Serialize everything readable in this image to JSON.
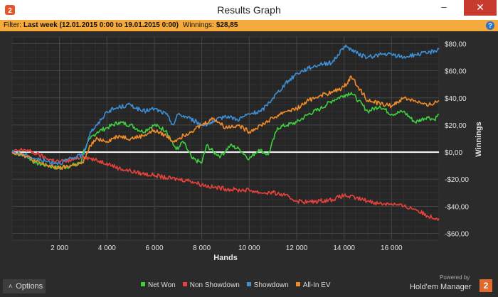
{
  "window": {
    "title": "Results Graph",
    "minimize_glyph": "–",
    "maximize_glyph": "□",
    "close_glyph": "✕",
    "app_icon": "hm2-logo-icon"
  },
  "filter": {
    "label": "Filter:",
    "value": "Last week (12.01.2015 0:00 to 19.01.2015 0:00)",
    "winnings_label": "Winnings:",
    "winnings_value": "$28,85",
    "help_icon": "help-icon",
    "help_glyph": "?"
  },
  "chart_data": {
    "type": "line",
    "xlabel": "Hands",
    "ylabel": "Winnings",
    "xlim": [
      0,
      18000
    ],
    "ylim": [
      -65,
      85
    ],
    "x_ticks": [
      2000,
      4000,
      6000,
      8000,
      10000,
      12000,
      14000,
      16000
    ],
    "x_tick_labels": [
      "2 000",
      "4 000",
      "6 000",
      "8 000",
      "10 000",
      "12 000",
      "14 000",
      "16 000"
    ],
    "y_ticks": [
      80,
      60,
      40,
      20,
      0,
      -20,
      -40,
      -60
    ],
    "y_tick_labels": [
      "$80,00",
      "$60,00",
      "$40,00",
      "$20,00",
      "$0,00",
      "-$20,00",
      "-$40,00",
      "-$60,00"
    ],
    "grid": true,
    "series": [
      {
        "name": "Net Won",
        "color": "#3ecf3e",
        "x": [
          0,
          600,
          1000,
          1500,
          2000,
          2500,
          2900,
          3000,
          3300,
          3600,
          4000,
          4500,
          5000,
          5500,
          6000,
          6500,
          6800,
          7000,
          7200,
          7600,
          8000,
          8200,
          8500,
          8800,
          9200,
          9600,
          10000,
          10400,
          10800,
          11200,
          11600,
          12000,
          12500,
          13000,
          13500,
          14000,
          14300,
          14600,
          15000,
          15500,
          16000,
          16500,
          17000,
          17500,
          17800,
          18000
        ],
        "values": [
          0,
          -3,
          -8,
          -10,
          -12,
          -10,
          -8,
          0,
          10,
          15,
          18,
          22,
          20,
          15,
          20,
          16,
          5,
          2,
          8,
          -5,
          -8,
          5,
          0,
          -3,
          5,
          2,
          -5,
          2,
          -2,
          18,
          20,
          22,
          28,
          32,
          38,
          42,
          44,
          38,
          30,
          34,
          28,
          30,
          22,
          26,
          24,
          28
        ]
      },
      {
        "name": "Non Showdown",
        "color": "#e8413b",
        "x": [
          0,
          500,
          1000,
          1500,
          2000,
          2500,
          3000,
          3500,
          4000,
          4500,
          5000,
          5500,
          6000,
          6500,
          7000,
          7500,
          8000,
          8500,
          9000,
          9500,
          10000,
          10500,
          11000,
          11500,
          12000,
          12500,
          13000,
          13500,
          14000,
          14500,
          15000,
          15500,
          16000,
          16500,
          17000,
          17500,
          18000
        ],
        "values": [
          0,
          2,
          -1,
          -5,
          -7,
          -6,
          -3,
          -6,
          -8,
          -12,
          -14,
          -16,
          -17,
          -19,
          -20,
          -21,
          -24,
          -26,
          -27,
          -28,
          -28,
          -30,
          -30,
          -32,
          -36,
          -37,
          -36,
          -35,
          -32,
          -34,
          -36,
          -38,
          -38,
          -40,
          -42,
          -47,
          -49
        ]
      },
      {
        "name": "Showdown",
        "color": "#3d8fd6",
        "x": [
          0,
          500,
          1000,
          1500,
          2000,
          2500,
          3000,
          3300,
          3600,
          3800,
          4000,
          4500,
          5000,
          5500,
          6000,
          6500,
          6800,
          7000,
          7500,
          8000,
          8500,
          9000,
          9500,
          10000,
          10500,
          11000,
          11500,
          12000,
          12500,
          13000,
          13500,
          14000,
          14300,
          14600,
          15000,
          15500,
          16000,
          16500,
          17000,
          17500,
          18000
        ],
        "values": [
          0,
          -2,
          -5,
          -7,
          -8,
          -5,
          -2,
          15,
          20,
          25,
          30,
          33,
          35,
          30,
          32,
          28,
          20,
          28,
          25,
          20,
          22,
          27,
          24,
          28,
          30,
          40,
          50,
          58,
          62,
          65,
          66,
          78,
          76,
          72,
          70,
          72,
          72,
          70,
          72,
          73,
          76
        ]
      },
      {
        "name": "All-In EV",
        "color": "#f28c28",
        "x": [
          0,
          500,
          1000,
          1500,
          2000,
          2500,
          3000,
          3300,
          3600,
          4000,
          4500,
          5000,
          5500,
          6000,
          6500,
          6800,
          7000,
          7500,
          8000,
          8500,
          9000,
          9500,
          10000,
          10500,
          11000,
          11500,
          12000,
          12500,
          13000,
          13500,
          14000,
          14300,
          14600,
          15000,
          15500,
          16000,
          16500,
          17000,
          17500,
          18000
        ],
        "values": [
          0,
          -2,
          -7,
          -10,
          -12,
          -10,
          -8,
          5,
          10,
          8,
          12,
          10,
          12,
          16,
          12,
          8,
          10,
          15,
          20,
          25,
          18,
          20,
          15,
          20,
          25,
          30,
          32,
          38,
          42,
          44,
          48,
          56,
          48,
          38,
          36,
          34,
          40,
          38,
          34,
          38
        ]
      }
    ]
  },
  "footer": {
    "options_label": "Options",
    "options_icon": "chevron-up-icon",
    "options_glyph": "˄",
    "brand_powered": "Powered by",
    "brand_name": "Hold'em Manager",
    "brand_logo_text": "2"
  }
}
